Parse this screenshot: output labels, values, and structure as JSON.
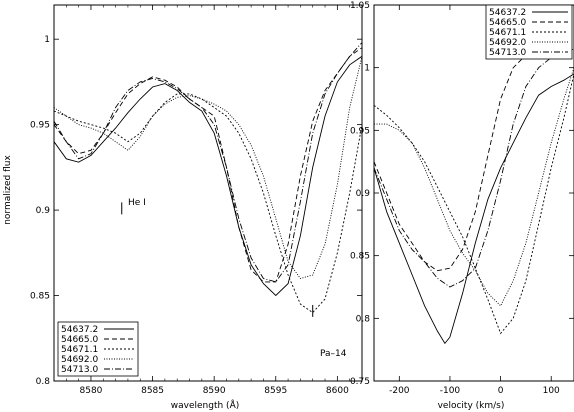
{
  "chart_data": [
    {
      "type": "line",
      "xlabel": "wavelength (Å)",
      "ylabel": "normalized flux",
      "xlim": [
        8577,
        8602
      ],
      "ylim": [
        0.8,
        1.02
      ],
      "xticks": [
        8580,
        8585,
        8590,
        8595,
        8600
      ],
      "yticks": [
        0.8,
        0.85,
        0.9,
        0.95,
        1
      ],
      "ytick_labels": [
        "0.8",
        "0.85",
        "0.9",
        "0.95",
        "1"
      ],
      "legend_position": "bottom-left",
      "annotations": [
        {
          "text": "He I",
          "x": 8582.5,
          "y_top": 0.9045,
          "y_bottom": 0.8975
        },
        {
          "text": "Pa–14",
          "x": 8598.0,
          "y_top": 0.8445,
          "y_bottom": 0.8375
        }
      ],
      "series": [
        {
          "name": "54637.2",
          "dash": "",
          "x": [
            8577,
            8578,
            8579,
            8580,
            8581,
            8582,
            8583,
            8584,
            8585,
            8586,
            8587,
            8588,
            8589,
            8590,
            8591,
            8592,
            8593,
            8594,
            8595,
            8596,
            8597,
            8598,
            8599,
            8600,
            8601,
            8602
          ],
          "y": [
            0.94,
            0.93,
            0.928,
            0.932,
            0.94,
            0.948,
            0.957,
            0.965,
            0.972,
            0.974,
            0.97,
            0.963,
            0.958,
            0.945,
            0.92,
            0.89,
            0.868,
            0.857,
            0.85,
            0.857,
            0.885,
            0.925,
            0.955,
            0.975,
            0.985,
            0.99
          ]
        },
        {
          "name": "54665.0",
          "dash": "5,3",
          "x": [
            8577,
            8578,
            8579,
            8580,
            8581,
            8582,
            8583,
            8584,
            8585,
            8586,
            8587,
            8588,
            8589,
            8590,
            8591,
            8592,
            8593,
            8594,
            8595,
            8596,
            8597,
            8598,
            8599,
            8600,
            8601,
            8602
          ],
          "y": [
            0.95,
            0.94,
            0.933,
            0.935,
            0.945,
            0.957,
            0.968,
            0.974,
            0.978,
            0.976,
            0.972,
            0.965,
            0.96,
            0.955,
            0.925,
            0.89,
            0.865,
            0.858,
            0.858,
            0.88,
            0.92,
            0.952,
            0.97,
            0.98,
            0.99,
            0.995
          ]
        },
        {
          "name": "54671.1",
          "dash": "2,2",
          "x": [
            8577,
            8578,
            8579,
            8580,
            8581,
            8582,
            8583,
            8584,
            8585,
            8586,
            8587,
            8588,
            8589,
            8590,
            8591,
            8592,
            8593,
            8594,
            8595,
            8596,
            8597,
            8598,
            8599,
            8600,
            8601,
            8602
          ],
          "y": [
            0.958,
            0.955,
            0.952,
            0.95,
            0.948,
            0.945,
            0.94,
            0.945,
            0.955,
            0.963,
            0.968,
            0.968,
            0.965,
            0.96,
            0.955,
            0.945,
            0.93,
            0.91,
            0.885,
            0.862,
            0.845,
            0.84,
            0.848,
            0.875,
            0.91,
            0.95
          ]
        },
        {
          "name": "54692.0",
          "dash": "1,1.5",
          "x": [
            8577,
            8578,
            8579,
            8580,
            8581,
            8582,
            8583,
            8584,
            8585,
            8586,
            8587,
            8588,
            8589,
            8590,
            8591,
            8592,
            8593,
            8594,
            8595,
            8596,
            8597,
            8598,
            8599,
            8600,
            8601,
            8602
          ],
          "y": [
            0.96,
            0.955,
            0.95,
            0.948,
            0.945,
            0.94,
            0.935,
            0.943,
            0.955,
            0.962,
            0.966,
            0.967,
            0.965,
            0.962,
            0.958,
            0.95,
            0.938,
            0.92,
            0.895,
            0.87,
            0.86,
            0.862,
            0.88,
            0.915,
            0.96,
            0.99
          ]
        },
        {
          "name": "54713.0",
          "dash": "6,2,1,2",
          "x": [
            8577,
            8578,
            8579,
            8580,
            8581,
            8582,
            8583,
            8584,
            8585,
            8586,
            8587,
            8588,
            8589,
            8590,
            8591,
            8592,
            8593,
            8594,
            8595,
            8596,
            8597,
            8598,
            8599,
            8600,
            8601,
            8602
          ],
          "y": [
            0.952,
            0.94,
            0.93,
            0.933,
            0.945,
            0.96,
            0.97,
            0.975,
            0.977,
            0.975,
            0.971,
            0.965,
            0.96,
            0.95,
            0.925,
            0.895,
            0.872,
            0.86,
            0.858,
            0.868,
            0.905,
            0.945,
            0.968,
            0.98,
            0.99,
            0.998
          ]
        }
      ]
    },
    {
      "type": "line",
      "xlabel": "velocity (km/s)",
      "ylabel": "",
      "xlim": [
        -250,
        145
      ],
      "ylim": [
        0.75,
        1.05
      ],
      "xticks": [
        -200,
        -100,
        0,
        100
      ],
      "yticks": [
        0.75,
        0.8,
        0.85,
        0.9,
        0.95,
        1,
        1.05
      ],
      "ytick_labels": [
        "0.75",
        "0.8",
        "0.85",
        "0.9",
        "0.95",
        "1",
        "1.05"
      ],
      "legend_position": "top-left",
      "series": [
        {
          "name": "54637.2",
          "dash": "",
          "x": [
            -250,
            -225,
            -200,
            -175,
            -150,
            -125,
            -110,
            -100,
            -75,
            -50,
            -25,
            0,
            25,
            50,
            75,
            100,
            125,
            145
          ],
          "y": [
            0.92,
            0.885,
            0.86,
            0.835,
            0.81,
            0.79,
            0.78,
            0.785,
            0.82,
            0.86,
            0.895,
            0.92,
            0.94,
            0.96,
            0.978,
            0.985,
            0.99,
            0.995
          ]
        },
        {
          "name": "54665.0",
          "dash": "5,3",
          "x": [
            -250,
            -225,
            -200,
            -175,
            -150,
            -125,
            -100,
            -75,
            -50,
            -25,
            0,
            25,
            50,
            75,
            100,
            125,
            145
          ],
          "y": [
            0.925,
            0.9,
            0.875,
            0.86,
            0.845,
            0.838,
            0.84,
            0.855,
            0.885,
            0.93,
            0.975,
            1.0,
            1.01,
            1.018,
            1.02,
            1.022,
            1.022
          ]
        },
        {
          "name": "54671.1",
          "dash": "2,2",
          "x": [
            -250,
            -225,
            -200,
            -175,
            -150,
            -125,
            -100,
            -75,
            -50,
            -25,
            0,
            25,
            50,
            75,
            100,
            125,
            145
          ],
          "y": [
            0.97,
            0.962,
            0.952,
            0.94,
            0.925,
            0.905,
            0.885,
            0.865,
            0.84,
            0.815,
            0.788,
            0.8,
            0.83,
            0.875,
            0.92,
            0.96,
            0.995
          ]
        },
        {
          "name": "54692.0",
          "dash": "1,1.5",
          "x": [
            -250,
            -225,
            -200,
            -175,
            -150,
            -125,
            -100,
            -75,
            -50,
            -25,
            0,
            25,
            50,
            75,
            100,
            125,
            145
          ],
          "y": [
            0.955,
            0.955,
            0.95,
            0.94,
            0.92,
            0.895,
            0.87,
            0.852,
            0.838,
            0.82,
            0.81,
            0.83,
            0.86,
            0.9,
            0.94,
            0.975,
            1.0
          ]
        },
        {
          "name": "54713.0",
          "dash": "6,2,1,2",
          "x": [
            -250,
            -225,
            -200,
            -175,
            -150,
            -125,
            -100,
            -75,
            -50,
            -25,
            0,
            25,
            50,
            75,
            100,
            125,
            145
          ],
          "y": [
            0.92,
            0.895,
            0.87,
            0.855,
            0.845,
            0.832,
            0.825,
            0.83,
            0.84,
            0.87,
            0.91,
            0.955,
            0.985,
            1.0,
            1.008,
            1.012,
            1.015
          ]
        }
      ]
    }
  ]
}
